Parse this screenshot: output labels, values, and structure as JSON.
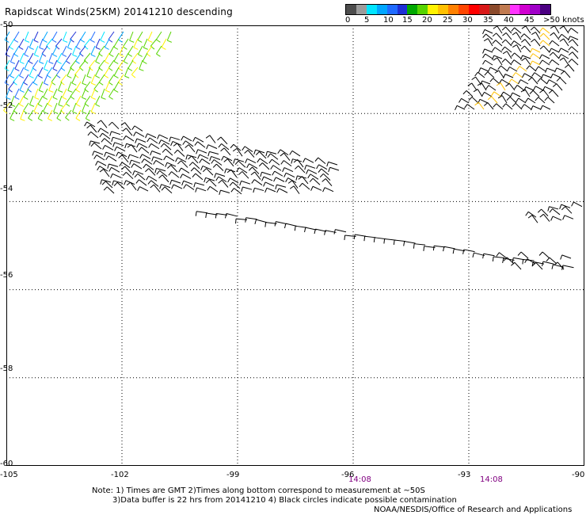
{
  "title": "Rapidscat Winds(25KM) 20141210 descending",
  "colorbar": {
    "colors": [
      "#4d4d4d",
      "#9c9c9c",
      "#00e5ff",
      "#00a6ff",
      "#1f6bff",
      "#1e2fd6",
      "#00a800",
      "#56d400",
      "#fff200",
      "#ffc000",
      "#ff8000",
      "#ff4500",
      "#ff0000",
      "#d81818",
      "#8b4a2b",
      "#c07a50",
      "#ff33ff",
      "#d000d0",
      "#a000c8",
      "#4b0082"
    ],
    "labels": [
      "0",
      "5",
      "10",
      "15",
      "20",
      "25",
      "30",
      "35",
      "40",
      "45",
      ">50 knots"
    ]
  },
  "lat_labels": [
    "-50",
    "-52",
    "-54",
    "-56",
    "-58",
    "-60"
  ],
  "lon_labels": [
    "-105",
    "-102",
    "-99",
    "-96",
    "-93",
    "-90"
  ],
  "time_labels": [
    "14:08",
    "14:08"
  ],
  "notes": [
    "Note: 1) Times are GMT 2)Times along bottom correspond to measurement at ~50S",
    "3)Data buffer is 22 hrs from 20141210 4) Black circles indicate possible contamination",
    "NOAA/NESDIS/Office of Research and Applications"
  ],
  "map_extent": {
    "lon": [
      -105,
      -90
    ],
    "lat": [
      -60,
      -50
    ]
  }
}
